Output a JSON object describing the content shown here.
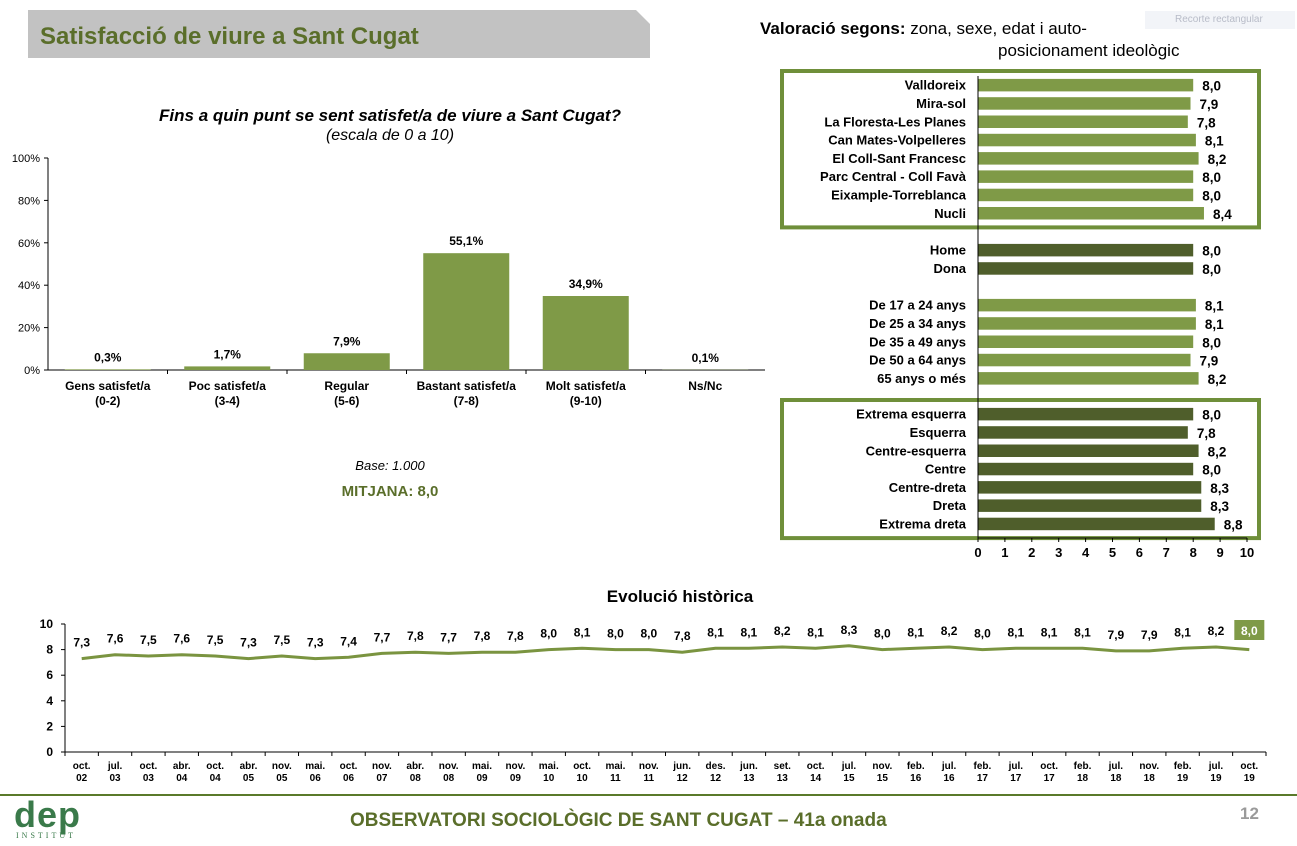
{
  "page": {
    "title": "Satisfacció de viure a Sant Cugat",
    "question": "Fins a quin punt se sent satisfet/a de viure a Sant Cugat?",
    "scale_note": "(escala de 0 a 10)",
    "base_note": "Base: 1.000",
    "mean_note": "MITJANA: 8,0",
    "valoracio_title_bold": "Valoració segons:",
    "valoracio_title_rest": " zona, sexe, edat i auto-",
    "valoracio_title_line2": "posicionament ideològic",
    "evolution_title": "Evolució històrica",
    "footer": "OBSERVATORI SOCIOLÒGIC DE SANT CUGAT – 41a onada",
    "page_number": "12",
    "logo_word": "dep",
    "logo_sub": "INSTITUT",
    "snip_label": "Recorte rectangular",
    "colors": {
      "accent": "#5a6e2a",
      "bar_light": "#7f9a47",
      "bar_dark": "#4f5e2b",
      "frame": "#6f8f3a",
      "line": "#7a9440"
    }
  },
  "chart_data": [
    {
      "type": "bar",
      "categories": [
        "Gens satisfet/a (0-2)",
        "Poc satisfet/a (3-4)",
        "Regular (5-6)",
        "Bastant satisfet/a (7-8)",
        "Molt satisfet/a (9-10)",
        "Ns/Nc"
      ],
      "category_lines": [
        [
          "Gens satisfet/a",
          "(0-2)"
        ],
        [
          "Poc satisfet/a",
          "(3-4)"
        ],
        [
          "Regular",
          "(5-6)"
        ],
        [
          "Bastant satisfet/a",
          "(7-8)"
        ],
        [
          "Molt satisfet/a",
          "(9-10)"
        ],
        [
          "Ns/Nc",
          ""
        ]
      ],
      "values": [
        0.3,
        1.7,
        7.9,
        55.1,
        34.9,
        0.1
      ],
      "value_labels": [
        "0,3%",
        "1,7%",
        "7,9%",
        "55,1%",
        "34,9%",
        "0,1%"
      ],
      "ylim": [
        0,
        100
      ],
      "yticks": [
        0,
        20,
        40,
        60,
        80,
        100
      ],
      "ytick_labels": [
        "0%",
        "20%",
        "40%",
        "60%",
        "80%",
        "100%"
      ]
    },
    {
      "type": "bar",
      "orientation": "horizontal",
      "groups": [
        {
          "name": "zona",
          "framed": true,
          "color": "#7f9a47",
          "categories": [
            "Valldoreix",
            "Mira-sol",
            "La Floresta-Les Planes",
            "Can Mates-Volpelleres",
            "El Coll-Sant Francesc",
            "Parc Central - Coll Favà",
            "Eixample-Torreblanca",
            "Nucli"
          ],
          "values": [
            8.0,
            7.9,
            7.8,
            8.1,
            8.2,
            8.0,
            8.0,
            8.4
          ],
          "value_labels": [
            "8,0",
            "7,9",
            "7,8",
            "8,1",
            "8,2",
            "8,0",
            "8,0",
            "8,4"
          ]
        },
        {
          "name": "sexe",
          "framed": false,
          "color": "#4f5e2b",
          "categories": [
            "Home",
            "Dona"
          ],
          "values": [
            8.0,
            8.0
          ],
          "value_labels": [
            "8,0",
            "8,0"
          ]
        },
        {
          "name": "edat",
          "framed": false,
          "color": "#7f9a47",
          "categories": [
            "De 17 a 24 anys",
            "De 25 a 34 anys",
            "De 35 a 49 anys",
            "De 50 a 64 anys",
            "65 anys o més"
          ],
          "values": [
            8.1,
            8.1,
            8.0,
            7.9,
            8.2
          ],
          "value_labels": [
            "8,1",
            "8,1",
            "8,0",
            "7,9",
            "8,2"
          ]
        },
        {
          "name": "ideologia",
          "framed": true,
          "color": "#4f5e2b",
          "categories": [
            "Extrema esquerra",
            "Esquerra",
            "Centre-esquerra",
            "Centre",
            "Centre-dreta",
            "Dreta",
            "Extrema dreta"
          ],
          "values": [
            8.0,
            7.8,
            8.2,
            8.0,
            8.3,
            8.3,
            8.8
          ],
          "value_labels": [
            "8,0",
            "7,8",
            "8,2",
            "8,0",
            "8,3",
            "8,3",
            "8,8"
          ]
        }
      ],
      "xlim": [
        0,
        10
      ],
      "xticks": [
        "0",
        "1",
        "2",
        "3",
        "4",
        "5",
        "6",
        "7",
        "8",
        "9",
        "10"
      ]
    },
    {
      "type": "line",
      "x_lines": [
        [
          "oct.",
          "02"
        ],
        [
          "jul.",
          "03"
        ],
        [
          "oct.",
          "03"
        ],
        [
          "abr.",
          "04"
        ],
        [
          "oct.",
          "04"
        ],
        [
          "abr.",
          "05"
        ],
        [
          "nov.",
          "05"
        ],
        [
          "mai.",
          "06"
        ],
        [
          "oct.",
          "06"
        ],
        [
          "nov.",
          "07"
        ],
        [
          "abr.",
          "08"
        ],
        [
          "nov.",
          "08"
        ],
        [
          "mai.",
          "09"
        ],
        [
          "nov.",
          "09"
        ],
        [
          "mai.",
          "10"
        ],
        [
          "oct.",
          "10"
        ],
        [
          "mai.",
          "11"
        ],
        [
          "nov.",
          "11"
        ],
        [
          "jun.",
          "12"
        ],
        [
          "des.",
          "12"
        ],
        [
          "jun.",
          "13"
        ],
        [
          "set.",
          "13"
        ],
        [
          "oct.",
          "14"
        ],
        [
          "jul.",
          "15"
        ],
        [
          "nov.",
          "15"
        ],
        [
          "feb.",
          "16"
        ],
        [
          "jul.",
          "16"
        ],
        [
          "feb.",
          "17"
        ],
        [
          "jul.",
          "17"
        ],
        [
          "oct.",
          "17"
        ],
        [
          "feb.",
          "18"
        ],
        [
          "jul.",
          "18"
        ],
        [
          "nov.",
          "18"
        ],
        [
          "feb.",
          "19"
        ],
        [
          "jul.",
          "19"
        ],
        [
          "oct.",
          "19"
        ]
      ],
      "values": [
        7.3,
        7.6,
        7.5,
        7.6,
        7.5,
        7.3,
        7.5,
        7.3,
        7.4,
        7.7,
        7.8,
        7.7,
        7.8,
        7.8,
        8.0,
        8.1,
        8.0,
        8.0,
        7.8,
        8.1,
        8.1,
        8.2,
        8.1,
        8.3,
        8.0,
        8.1,
        8.2,
        8.0,
        8.1,
        8.1,
        8.1,
        7.9,
        7.9,
        8.1,
        8.2,
        8.0
      ],
      "value_labels": [
        "7,3",
        "7,6",
        "7,5",
        "7,6",
        "7,5",
        "7,3",
        "7,5",
        "7,3",
        "7,4",
        "7,7",
        "7,8",
        "7,7",
        "7,8",
        "7,8",
        "8,0",
        "8,1",
        "8,0",
        "8,0",
        "7,8",
        "8,1",
        "8,1",
        "8,2",
        "8,1",
        "8,3",
        "8,0",
        "8,1",
        "8,2",
        "8,0",
        "8,1",
        "8,1",
        "8,1",
        "7,9",
        "7,9",
        "8,1",
        "8,2",
        "8,0"
      ],
      "ylim": [
        0,
        10
      ],
      "yticks": [
        "0",
        "2",
        "4",
        "6",
        "8",
        "10"
      ]
    }
  ]
}
